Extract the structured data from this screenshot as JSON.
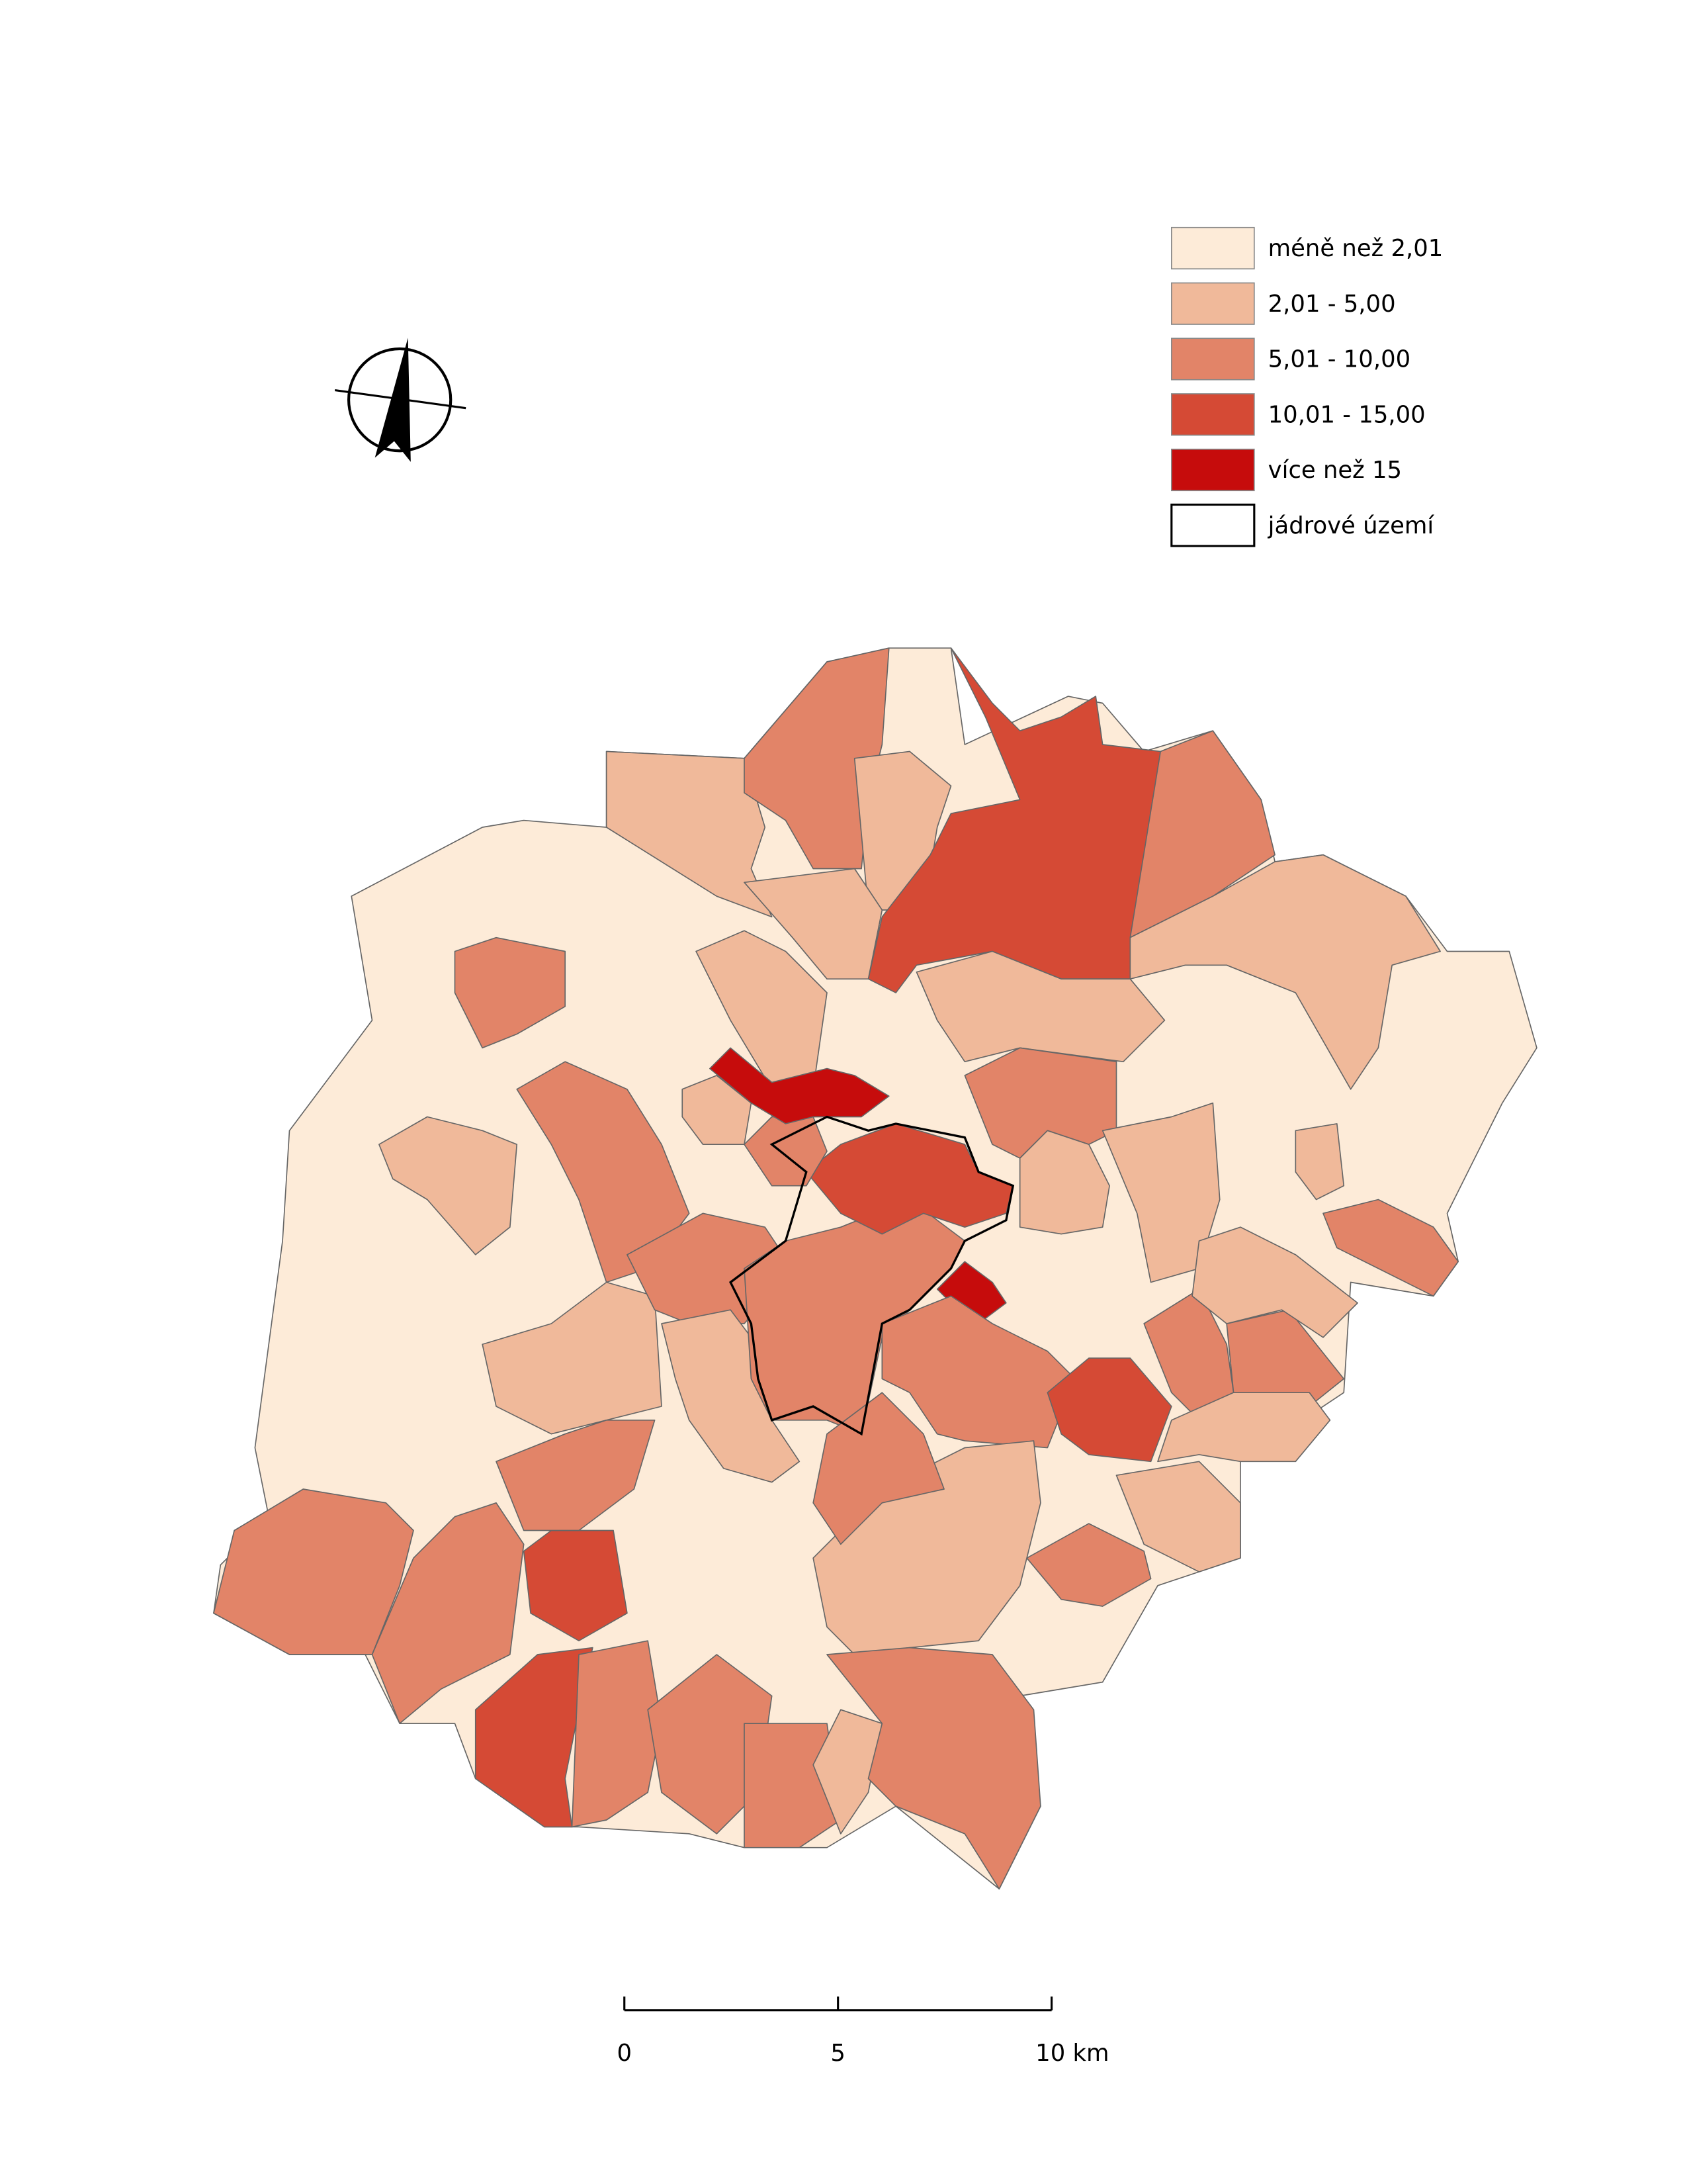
{
  "legend": {
    "items": [
      {
        "label": "méně než 2,01",
        "color": "#fdebd8"
      },
      {
        "label": "2,01 - 5,00",
        "color": "#f0b99a"
      },
      {
        "label": "5,01 - 10,00",
        "color": "#e28468"
      },
      {
        "label": "10,01 - 15,00",
        "color": "#d54a35"
      },
      {
        "label": "více než 15",
        "color": "#c60c0c"
      },
      {
        "label": "jádrové území",
        "color": "#ffffff"
      }
    ]
  },
  "scale_bar": {
    "labels": [
      "0",
      "5",
      "10 km"
    ]
  }
}
